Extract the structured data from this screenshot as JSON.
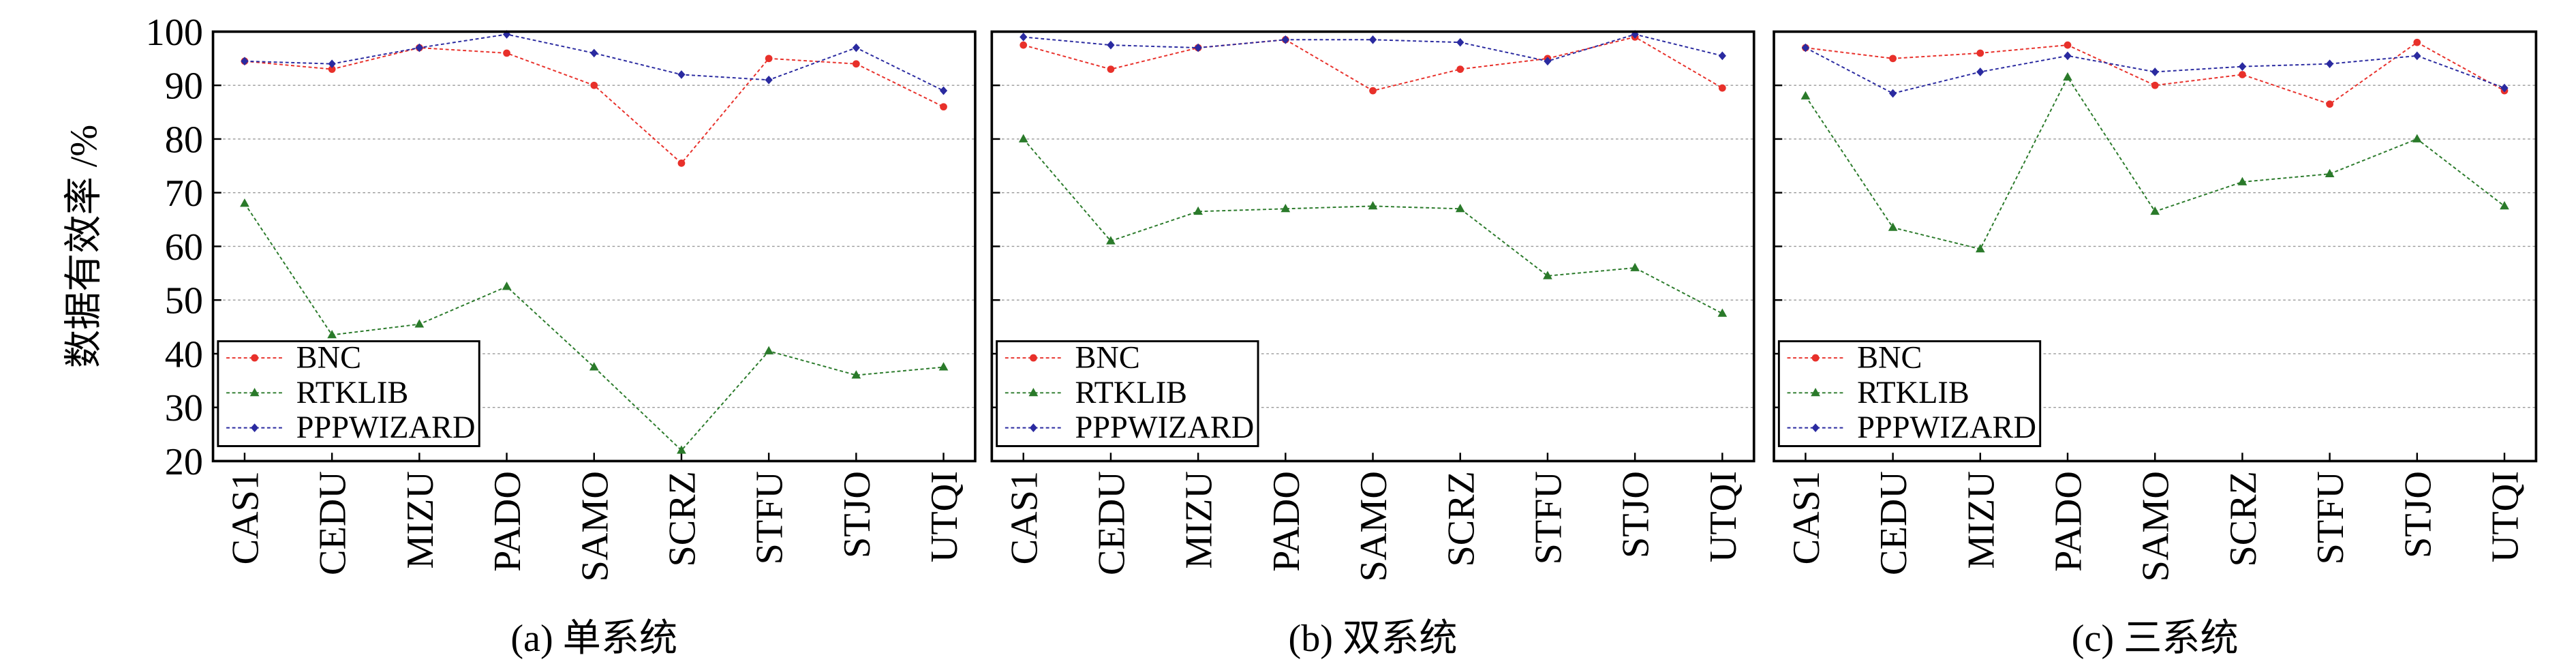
{
  "chart_data": [
    {
      "type": "line",
      "title": "(a) 单系统",
      "y_label": "数据有效率 /%",
      "categories": [
        "CAS1",
        "CEDU",
        "MIZU",
        "PADO",
        "SAMO",
        "SCRZ",
        "STFU",
        "STJO",
        "UTQI"
      ],
      "series": [
        {
          "name": "BNC",
          "color": "#e8302a",
          "values": [
            94.5,
            93,
            97,
            96,
            90,
            75.5,
            95,
            94,
            86
          ]
        },
        {
          "name": "RTKLIB",
          "color": "#2a7a2a",
          "values": [
            68,
            43.5,
            45.5,
            52.5,
            37.5,
            22,
            40.5,
            36,
            37.5
          ]
        },
        {
          "name": "PPPWIZARD",
          "color": "#2a2aa0",
          "values": [
            94.5,
            94,
            97,
            99.5,
            96,
            92,
            91,
            97,
            89
          ]
        }
      ],
      "ylim": [
        20,
        100
      ],
      "yticks": [
        20,
        30,
        40,
        50,
        60,
        70,
        80,
        90,
        100
      ],
      "grid": true,
      "legend": "lower left"
    },
    {
      "type": "line",
      "title": "(b) 双系统",
      "categories": [
        "CAS1",
        "CEDU",
        "MIZU",
        "PADO",
        "SAMO",
        "SCRZ",
        "STFU",
        "STJO",
        "UTQI"
      ],
      "series": [
        {
          "name": "BNC",
          "color": "#e8302a",
          "values": [
            97.5,
            93,
            97,
            98.5,
            89,
            93,
            95,
            99,
            89.5
          ]
        },
        {
          "name": "RTKLIB",
          "color": "#2a7a2a",
          "values": [
            80,
            61,
            66.5,
            67,
            67.5,
            67,
            54.5,
            56,
            47.5
          ]
        },
        {
          "name": "PPPWIZARD",
          "color": "#2a2aa0",
          "values": [
            99,
            97.5,
            97,
            98.5,
            98.5,
            98,
            94.5,
            99.5,
            95.5
          ]
        }
      ],
      "ylim": [
        20,
        100
      ],
      "yticks": [
        20,
        30,
        40,
        50,
        60,
        70,
        80,
        90,
        100
      ],
      "grid": true,
      "legend": "lower left"
    },
    {
      "type": "line",
      "title": "(c) 三系统",
      "categories": [
        "CAS1",
        "CEDU",
        "MIZU",
        "PADO",
        "SAMO",
        "SCRZ",
        "STFU",
        "STJO",
        "UTQI"
      ],
      "series": [
        {
          "name": "BNC",
          "color": "#e8302a",
          "values": [
            97,
            95,
            96,
            97.5,
            90,
            92,
            86.5,
            98,
            89
          ]
        },
        {
          "name": "RTKLIB",
          "color": "#2a7a2a",
          "values": [
            88,
            63.5,
            59.5,
            91.5,
            66.5,
            72,
            73.5,
            80,
            67.5
          ]
        },
        {
          "name": "PPPWIZARD",
          "color": "#2a2aa0",
          "values": [
            97,
            88.5,
            92.5,
            95.5,
            92.5,
            93.5,
            94,
            95.5,
            89.5
          ]
        }
      ],
      "ylim": [
        20,
        100
      ],
      "yticks": [
        20,
        30,
        40,
        50,
        60,
        70,
        80,
        90,
        100
      ],
      "grid": true,
      "legend": "lower left"
    }
  ]
}
